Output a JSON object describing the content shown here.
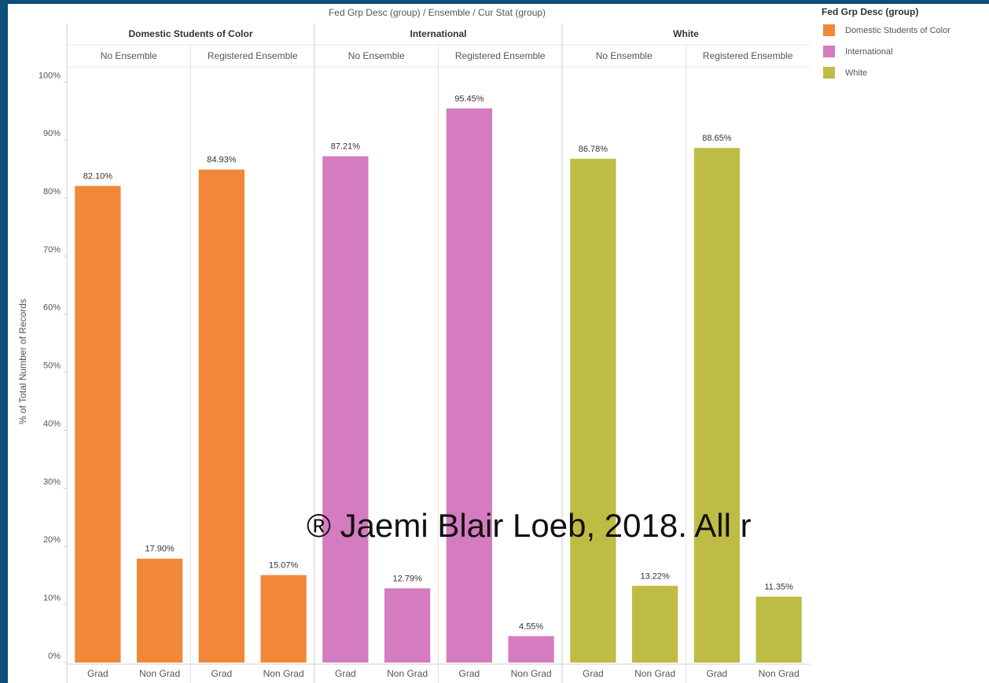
{
  "chart_data": {
    "type": "bar",
    "title": "Fed Grp Desc (group)  /  Ensemble  /  Cur Stat (group)",
    "y_label": "% of Total Number of Records",
    "subgroups": [
      "No Ensemble",
      "Registered Ensemble"
    ],
    "categories": [
      "Grad",
      "Non Grad",
      "Grad",
      "Non Grad"
    ],
    "series": [
      {
        "name": "Domestic Students of Color",
        "color": "#f08838",
        "values": [
          82.1,
          17.9,
          84.93,
          15.07
        ],
        "value_labels": [
          "82.10%",
          "17.90%",
          "84.93%",
          "15.07%"
        ]
      },
      {
        "name": "International",
        "color": "#d57bbf",
        "values": [
          87.21,
          12.79,
          95.45,
          4.55
        ],
        "value_labels": [
          "87.21%",
          "12.79%",
          "95.45%",
          "4.55%"
        ]
      },
      {
        "name": "White",
        "color": "#bfbc45",
        "values": [
          86.78,
          13.22,
          88.65,
          11.35
        ],
        "value_labels": [
          "86.78%",
          "13.22%",
          "88.65%",
          "11.35%"
        ]
      }
    ],
    "ylim": [
      0,
      102
    ],
    "yticks": [
      {
        "value": 0,
        "label": "0%"
      },
      {
        "value": 10,
        "label": "10%"
      },
      {
        "value": 20,
        "label": "20%"
      },
      {
        "value": 30,
        "label": "30%"
      },
      {
        "value": 40,
        "label": "40%"
      },
      {
        "value": 50,
        "label": "50%"
      },
      {
        "value": 60,
        "label": "60%"
      },
      {
        "value": 70,
        "label": "70%"
      },
      {
        "value": 80,
        "label": "80%"
      },
      {
        "value": 90,
        "label": "90%"
      },
      {
        "value": 100,
        "label": "100%"
      }
    ],
    "legend_title": "Fed Grp Desc (group)",
    "legend_position": "top-right",
    "watermark": "® Jaemi Blair Loeb, 2018. All r"
  }
}
